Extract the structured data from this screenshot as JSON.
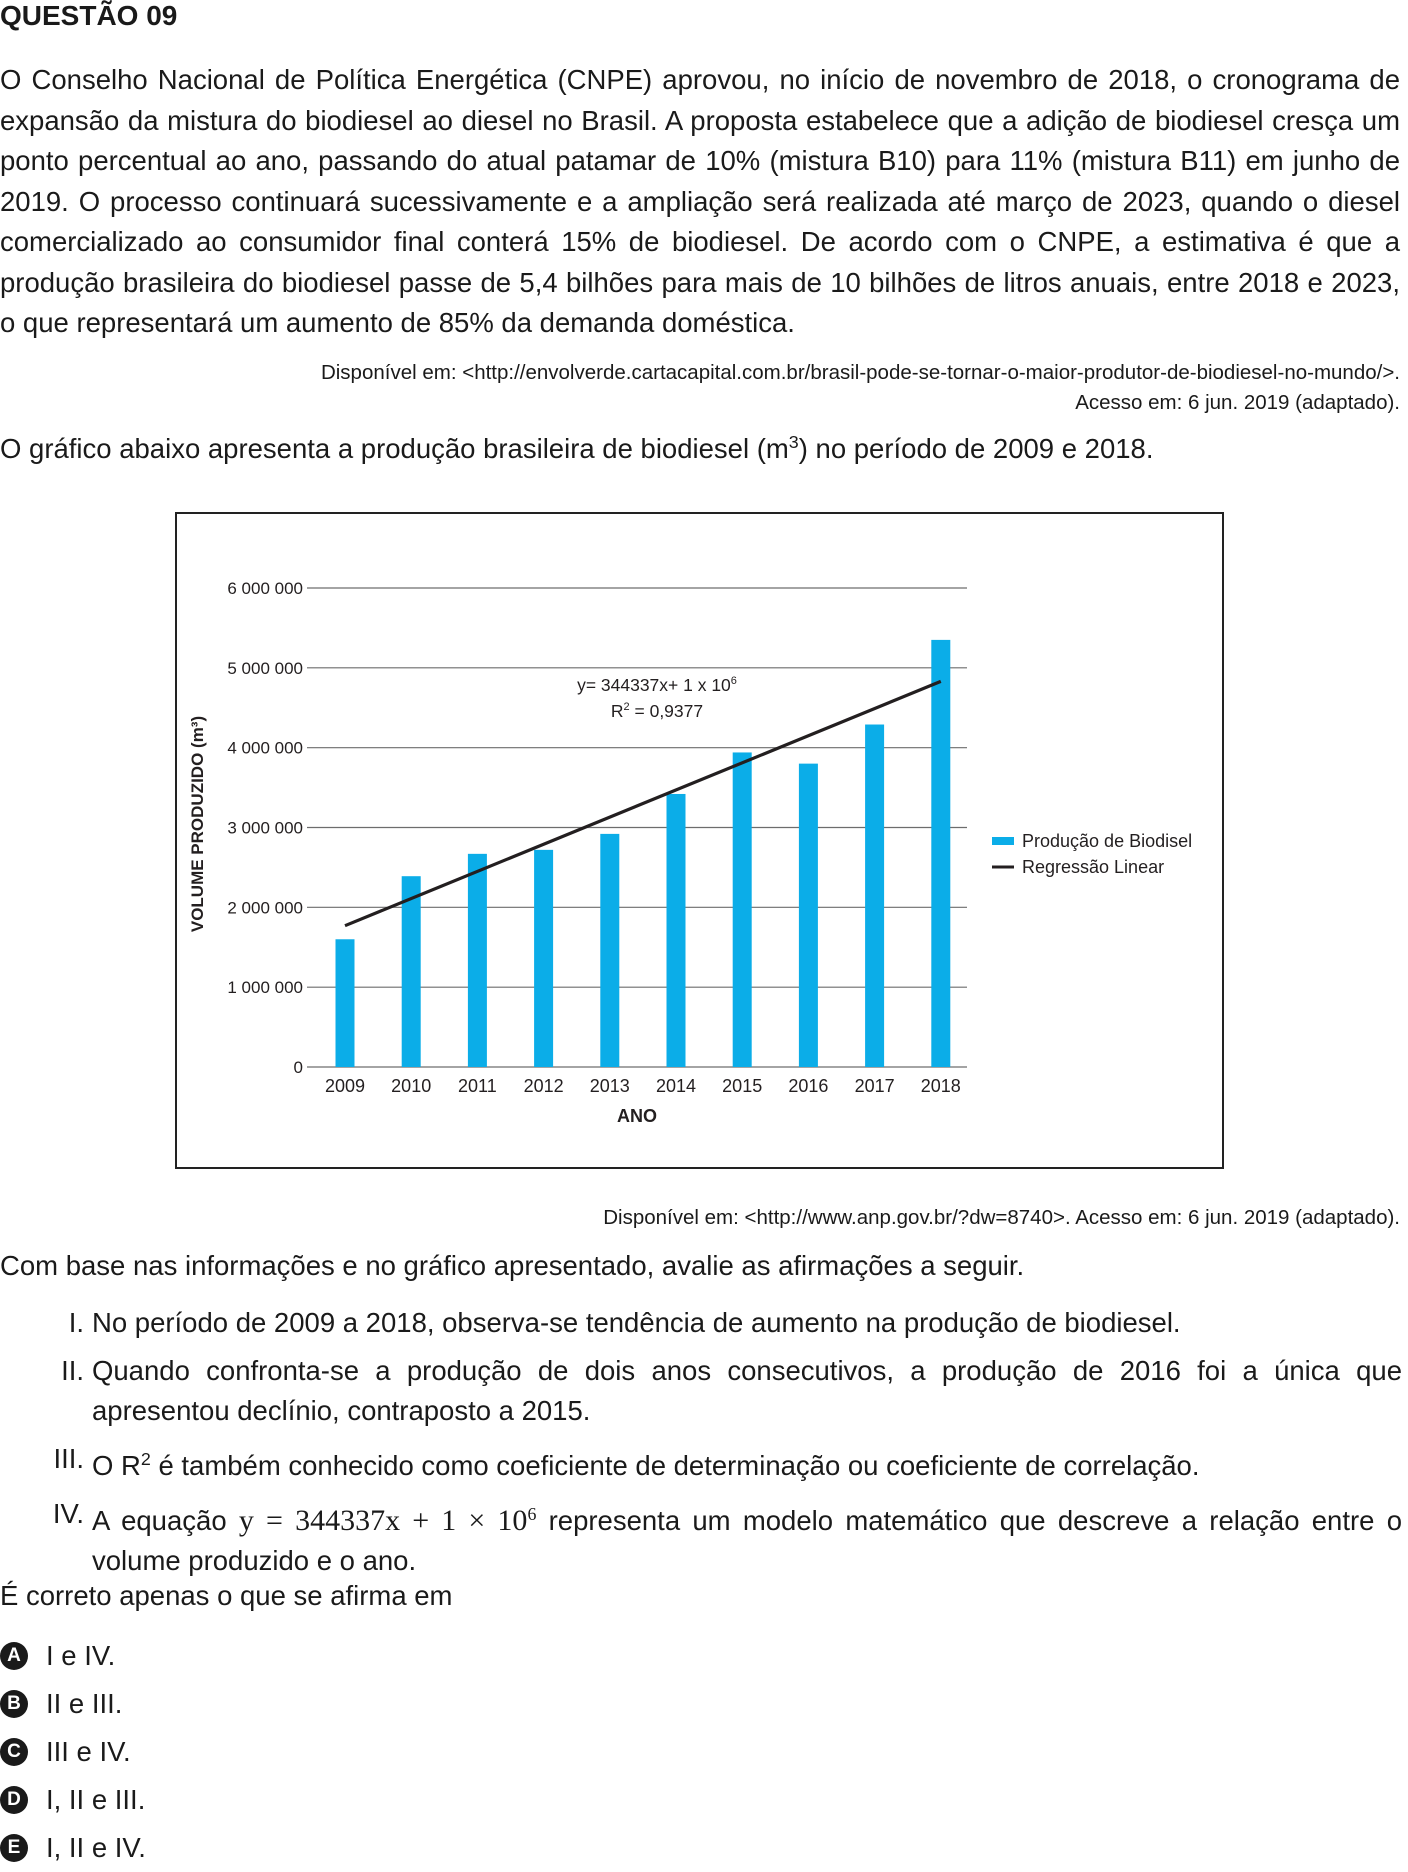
{
  "header": {
    "title": "QUESTÃO 09"
  },
  "text": {
    "paragraph": "O Conselho Nacional de Política Energética (CNPE) aprovou, no início de novembro de 2018, o cronograma de expansão da mistura do biodiesel ao diesel no Brasil. A proposta estabelece que a adição de biodiesel cresça um ponto percentual ao ano, passando do atual patamar de 10% (mistura B10) para 11% (mistura B11) em junho de 2019. O processo continuará sucessivamente e a ampliação será realizada até março de 2023, quando o diesel comercializado ao consumidor final conterá 15% de biodiesel. De acordo com o CNPE, a estimativa é que a produção brasileira do biodiesel passe de 5,4 bilhões para mais de 10 bilhões de litros anuais, entre 2018 e 2023, o que representará um aumento de 85% da demanda doméstica.",
    "source1_line1": "Disponível em: <http://envolverde.cartacapital.com.br/brasil-pode-se-tornar-o-maior-produtor-de-biodiesel-no-mundo/>.",
    "source1_line2": "Acesso em: 6 jun. 2019 (adaptado).",
    "chart_intro_a": "O gráfico abaixo apresenta a produção brasileira de biodiesel (m",
    "chart_intro_sup": "3",
    "chart_intro_b": ") no período de 2009 e 2018.",
    "source2": "Disponível em: <http://www.anp.gov.br/?dw=8740>. Acesso em: 6 jun. 2019 (adaptado).",
    "prompt": "Com base nas informações e no gráfico apresentado, avalie as afirmações a seguir."
  },
  "statements": [
    {
      "num": "I.",
      "text": "No período de 2009 a 2018, observa-se tendência de aumento na produção de biodiesel."
    },
    {
      "num": "II.",
      "text": "Quando confronta-se a produção de dois anos consecutivos, a produção de 2016 foi a única que apresentou declínio, contraposto a 2015."
    },
    {
      "num": "III.",
      "text_a": "O R",
      "sup": "2",
      "text_b": " é também conhecido como coeficiente de determinação ou coeficiente de correlação."
    },
    {
      "num": "IV.",
      "text_a": " A equação ",
      "equation": "y = 344337x + 1 × 10",
      "eq_sup": "6",
      "text_b": " representa um modelo matemático que descreve a relação entre o volume produzido e o ano."
    }
  ],
  "question": {
    "ask": "É correto apenas o que se afirma em"
  },
  "options": [
    {
      "letter": "A",
      "text": "I e IV."
    },
    {
      "letter": "B",
      "text": "II e III."
    },
    {
      "letter": "C",
      "text": "III e IV."
    },
    {
      "letter": "D",
      "text": "I, II e III."
    },
    {
      "letter": "E",
      "text": "I, II e IV."
    }
  ],
  "colors": {
    "bar": "#0bade8",
    "line": "#231f20",
    "grid": "#6d6d6d"
  },
  "chart_data": {
    "type": "bar",
    "categories": [
      "2009",
      "2010",
      "2011",
      "2012",
      "2013",
      "2014",
      "2015",
      "2016",
      "2017",
      "2018"
    ],
    "series": [
      {
        "name": "Produção de Biodisel",
        "type": "bar",
        "values": [
          1600000,
          2390000,
          2670000,
          2720000,
          2920000,
          3420000,
          3940000,
          3800000,
          4290000,
          5350000
        ]
      },
      {
        "name": "Regressão Linear",
        "type": "line",
        "values": [
          1770000,
          2110000,
          2450000,
          2790000,
          3130000,
          3470000,
          3810000,
          4150000,
          4490000,
          4830000
        ]
      }
    ],
    "xlabel": "ANO",
    "ylabel": "VOLUME PRODUZIDO (m³)",
    "ylim": [
      0,
      6000000
    ],
    "yticks": [
      0,
      1000000,
      2000000,
      3000000,
      4000000,
      5000000,
      6000000
    ],
    "ytick_labels": [
      "0",
      "1 000 000",
      "2 000 000",
      "3 000 000",
      "4 000 000",
      "5 000 000",
      "6 000 000"
    ],
    "annotation_eq": "y= 344337x+ 1 x 10",
    "annotation_eq_sup": "6",
    "annotation_r2_a": "R",
    "annotation_r2_sup": "2",
    "annotation_r2_b": " = 0,9377",
    "grid": true,
    "legend_position": "right"
  }
}
